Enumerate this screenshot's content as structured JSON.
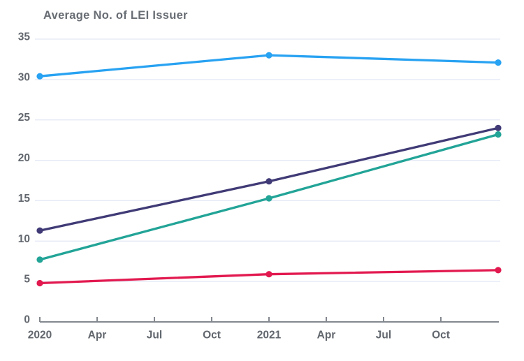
{
  "chart": {
    "title": "Average No. of LEI Issuer"
  },
  "chart_data": {
    "type": "line",
    "title": "Average No. of LEI Issuer",
    "xlabel": "",
    "ylabel": "",
    "x_axis": {
      "tick_labels": [
        "2020",
        "Apr",
        "Jul",
        "Oct",
        "2021",
        "Apr",
        "Jul",
        "Oct"
      ],
      "data_point_positions": [
        "2020",
        "2021",
        "2022"
      ]
    },
    "series_x_tick_indices": [
      0,
      4,
      8
    ],
    "y_axis": {
      "ticks": [
        0,
        5,
        10,
        15,
        20,
        25,
        30,
        35
      ],
      "range": [
        0,
        35
      ]
    },
    "grid": true,
    "legend": false,
    "marker": "circle",
    "series": [
      {
        "id": "series-1-light-blue",
        "color": "#28a2f2",
        "values": [
          30.4,
          33.0,
          32.1
        ]
      },
      {
        "id": "series-2-dark-purple",
        "color": "#403b76",
        "values": [
          11.3,
          17.4,
          24.0
        ]
      },
      {
        "id": "series-3-teal",
        "color": "#22a497",
        "values": [
          7.7,
          15.3,
          23.2
        ]
      },
      {
        "id": "series-4-crimson",
        "color": "#e2194f",
        "values": [
          4.8,
          5.9,
          6.4
        ]
      }
    ],
    "colors": {
      "grid": "#e4e8f5",
      "axis": "#83888f",
      "tick_text": "#62676e",
      "title_text": "#686d74",
      "background": "#ffffff"
    }
  }
}
